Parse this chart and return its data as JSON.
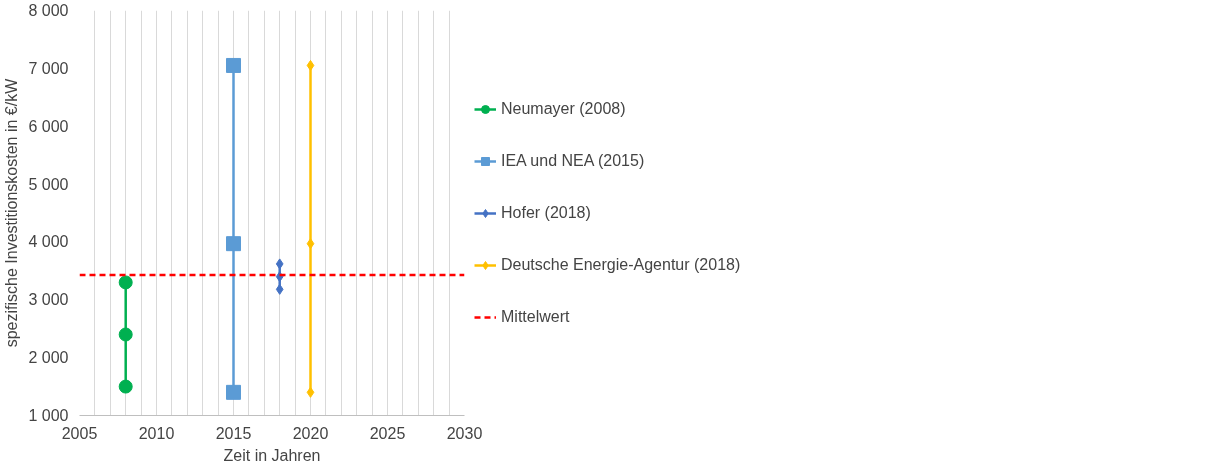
{
  "chart_data": {
    "type": "line",
    "xlabel": "Zeit in Jahren",
    "ylabel": "spezifische Investitionskosten in €/kW",
    "series": [
      {
        "name": "Neumayer (2008)",
        "color": "#00b050",
        "marker": "circle",
        "x": [
          2008,
          2008,
          2008
        ],
        "values": [
          3300,
          2400,
          1500
        ]
      },
      {
        "name": "IEA und NEA (2015)",
        "color": "#5b9bd5",
        "marker": "square",
        "x": [
          2015,
          2015,
          2015
        ],
        "values": [
          7050,
          3970,
          1400
        ]
      },
      {
        "name": "Hofer (2018)",
        "color": "#4472c4",
        "marker": "diamond",
        "x": [
          2018,
          2018,
          2018
        ],
        "values": [
          3620,
          3400,
          3180
        ]
      },
      {
        "name": "Deutsche Energie-Agentur (2018)",
        "color": "#ffc000",
        "marker": "diamond",
        "x": [
          2020,
          2020,
          2020
        ],
        "values": [
          7050,
          3970,
          1400
        ]
      }
    ],
    "ref_lines": [
      {
        "axis": "y",
        "value": 3430,
        "label": "Mittelwert",
        "color": "#ff0000",
        "line_style": "dashed"
      }
    ],
    "xlim": [
      2005,
      2030
    ],
    "ylim": [
      1000,
      8000
    ],
    "xticks": [
      2005,
      {
        "value": 2006,
        "label": null
      },
      {
        "value": 2007,
        "label": null
      },
      {
        "value": 2008,
        "label": null
      },
      {
        "value": 2009,
        "label": null
      },
      2010,
      {
        "value": 2011,
        "label": null
      },
      {
        "value": 2012,
        "label": null
      },
      {
        "value": 2013,
        "label": null
      },
      {
        "value": 2014,
        "label": null
      },
      2015,
      {
        "value": 2016,
        "label": null
      },
      {
        "value": 2017,
        "label": null
      },
      {
        "value": 2018,
        "label": null
      },
      {
        "value": 2019,
        "label": null
      },
      2020,
      {
        "value": 2021,
        "label": null
      },
      {
        "value": 2022,
        "label": null
      },
      {
        "value": 2023,
        "label": null
      },
      {
        "value": 2024,
        "label": null
      },
      2025,
      {
        "value": 2026,
        "label": null
      },
      {
        "value": 2027,
        "label": null
      },
      {
        "value": 2028,
        "label": null
      },
      {
        "value": 2029,
        "label": null
      },
      2030
    ],
    "yticks": [
      {
        "value": 1000,
        "label": "1 000"
      },
      {
        "value": 2000,
        "label": "2 000"
      },
      {
        "value": 3000,
        "label": "3 000"
      },
      {
        "value": 4000,
        "label": "4 000"
      },
      {
        "value": 5000,
        "label": "5 000"
      },
      {
        "value": 6000,
        "label": "6 000"
      },
      {
        "value": 7000,
        "label": "7 000"
      },
      {
        "value": 8000,
        "label": "8 000"
      }
    ],
    "grid": "x",
    "legend": "right"
  }
}
